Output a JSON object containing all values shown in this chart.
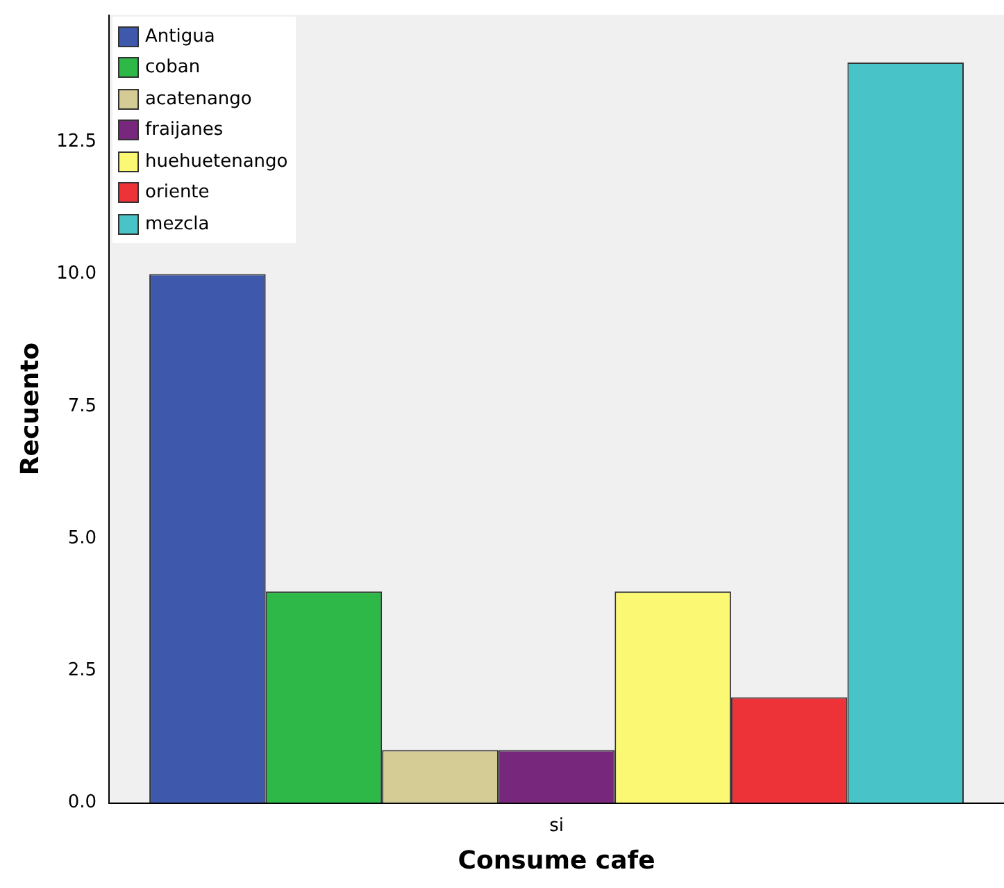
{
  "chart_data": {
    "type": "bar",
    "xlabel": "Consume cafe",
    "ylabel": "Recuento",
    "categories": [
      "si"
    ],
    "series": [
      {
        "name": "Antigua",
        "color": "#3e58ac",
        "values": [
          10
        ]
      },
      {
        "name": "coban",
        "color": "#2eb848",
        "values": [
          4
        ]
      },
      {
        "name": "acatenango",
        "color": "#d4cc94",
        "values": [
          1
        ]
      },
      {
        "name": "fraijanes",
        "color": "#78287c",
        "values": [
          1
        ]
      },
      {
        "name": "huehuetenango",
        "color": "#fbf873",
        "values": [
          4
        ]
      },
      {
        "name": "oriente",
        "color": "#ee3338",
        "values": [
          2
        ]
      },
      {
        "name": "mezcla",
        "color": "#48c4c8",
        "values": [
          14
        ]
      }
    ],
    "ylim": [
      0,
      14.9
    ],
    "yticks": [
      {
        "value": 0,
        "label": "0.0"
      },
      {
        "value": 2.5,
        "label": "2.5"
      },
      {
        "value": 5,
        "label": "5.0"
      },
      {
        "value": 7.5,
        "label": "7.5"
      },
      {
        "value": 10,
        "label": "10.0"
      },
      {
        "value": 12.5,
        "label": "12.5"
      }
    ],
    "grid": false,
    "legend": "top left"
  }
}
